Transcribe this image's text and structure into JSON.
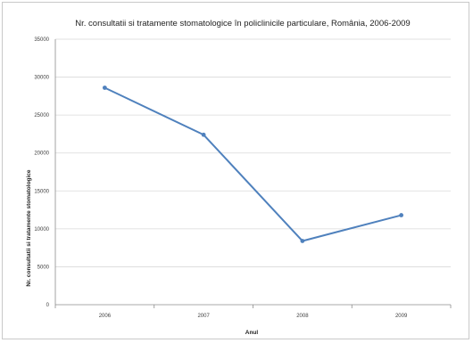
{
  "chart_data": {
    "type": "line",
    "title": "Nr. consultatii si tratamente stomatologice în policlinicile particulare, România, 2006-2009",
    "xlabel": "Anul",
    "ylabel": "Nr. consultatii si tratamente stomatologice",
    "categories": [
      "2006",
      "2007",
      "2008",
      "2009"
    ],
    "series": [
      {
        "values": [
          28600,
          22400,
          8400,
          11800
        ],
        "color": "#4f81bd"
      }
    ],
    "ylim": [
      0,
      35000
    ],
    "yticks": [
      "0",
      "5000",
      "10000",
      "15000",
      "20000",
      "25000",
      "30000",
      "35000"
    ],
    "grid": true,
    "legend": "none"
  }
}
